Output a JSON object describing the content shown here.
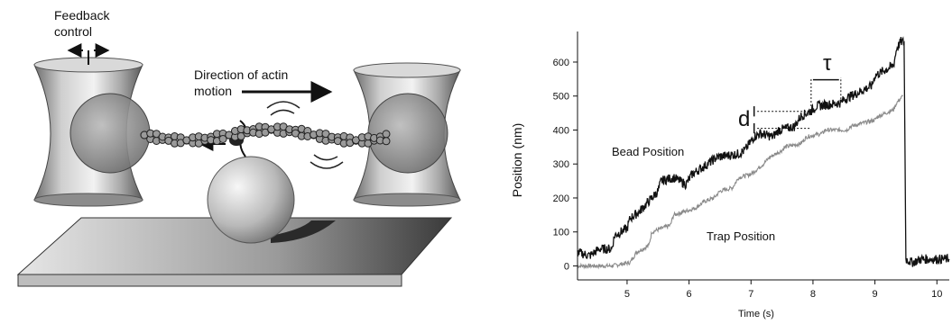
{
  "schematic": {
    "feedback_label_line1": "Feedback",
    "feedback_label_line2": "control",
    "direction_label_line1": "Direction of actin",
    "direction_label_line2": "motion"
  },
  "chart_data": {
    "type": "line",
    "title": "",
    "xlabel": "Time (s)",
    "ylabel": "Position (nm)",
    "xlim": [
      4.2,
      10.2
    ],
    "ylim": [
      -20,
      690
    ],
    "xticks": [
      5,
      6,
      7,
      8,
      9,
      10
    ],
    "yticks": [
      0,
      100,
      200,
      300,
      400,
      500,
      600
    ],
    "grid": false,
    "legend": "none",
    "series": [
      {
        "name": "Bead Position",
        "color": "#111111",
        "noise": 14,
        "x": [
          4.2,
          4.4,
          4.55,
          4.75,
          4.8,
          5.0,
          5.05,
          5.2,
          5.35,
          5.5,
          5.55,
          5.75,
          5.95,
          6.05,
          6.3,
          6.45,
          6.8,
          6.9,
          7.05,
          7.15,
          7.35,
          7.45,
          7.7,
          7.8,
          8.0,
          8.05,
          8.45,
          8.5,
          8.95,
          9.0,
          9.3,
          9.35,
          9.42,
          9.47,
          9.5,
          9.6,
          9.75,
          10.2
        ],
        "y": [
          40,
          30,
          50,
          50,
          90,
          110,
          140,
          160,
          190,
          220,
          250,
          260,
          240,
          270,
          300,
          320,
          330,
          340,
          380,
          390,
          380,
          400,
          410,
          440,
          460,
          470,
          480,
          490,
          530,
          560,
          590,
          640,
          660,
          660,
          20,
          10,
          20,
          20
        ]
      },
      {
        "name": "Trap Position",
        "color": "#8a8a8a",
        "noise": 6,
        "x": [
          4.2,
          4.45,
          4.6,
          4.75,
          5.05,
          5.15,
          5.35,
          5.4,
          5.7,
          5.75,
          6.1,
          6.25,
          6.4,
          6.5,
          6.7,
          6.8,
          7.0,
          7.2,
          7.3,
          7.5,
          7.55,
          7.8,
          7.9,
          8.15,
          8.2,
          8.55,
          8.6,
          9.0,
          9.05,
          9.3,
          9.35,
          9.45
        ],
        "y": [
          0,
          0,
          0,
          0,
          10,
          40,
          60,
          100,
          120,
          150,
          170,
          190,
          200,
          220,
          230,
          260,
          270,
          300,
          320,
          340,
          350,
          360,
          380,
          390,
          400,
          400,
          410,
          430,
          440,
          460,
          480,
          500
        ]
      }
    ],
    "annotations": {
      "bead_label": "Bead Position",
      "trap_label": "Trap Position",
      "step_size_symbol": "d",
      "dwell_time_symbol": "τ"
    }
  }
}
